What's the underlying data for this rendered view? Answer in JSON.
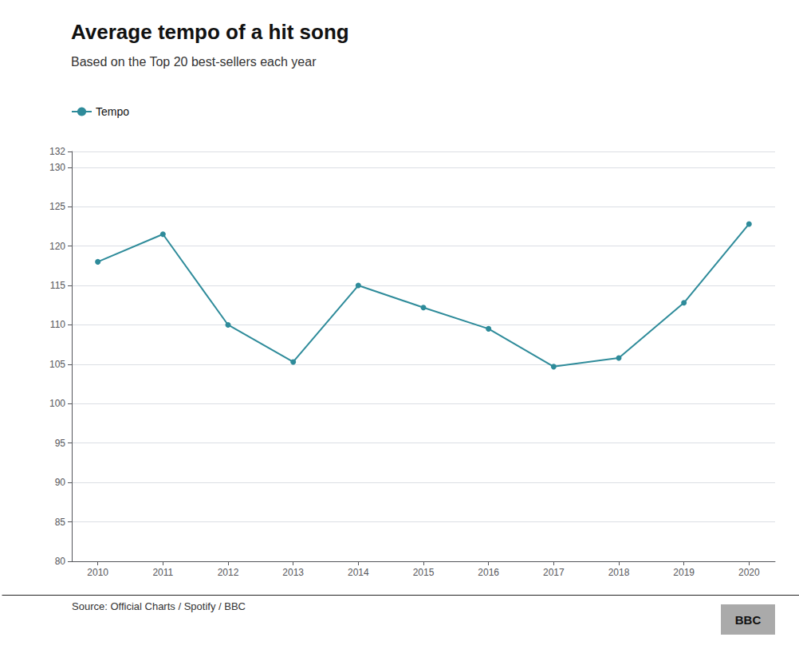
{
  "chart_data": {
    "type": "line",
    "title": "Average tempo of a hit song",
    "subtitle": "Based on the Top 20 best-sellers each year",
    "annotations": [
      "Source: Official Charts / Spotify / BBC",
      "BBC"
    ],
    "x": [
      2010,
      2011,
      2012,
      2013,
      2014,
      2015,
      2016,
      2017,
      2018,
      2019,
      2020
    ],
    "series": [
      {
        "name": "Tempo",
        "color": "#2e8b9a",
        "marker": "circle",
        "values": [
          118.0,
          121.5,
          110.0,
          105.3,
          115.0,
          112.2,
          109.5,
          104.7,
          105.8,
          112.8,
          122.8
        ]
      }
    ],
    "xlim": [
      2009.6,
      2020.4
    ],
    "xticks": [
      2010,
      2011,
      2012,
      2013,
      2014,
      2015,
      2016,
      2017,
      2018,
      2019,
      2020
    ],
    "ylim": [
      80,
      132
    ],
    "yticks": [
      80,
      85,
      90,
      95,
      100,
      105,
      110,
      115,
      120,
      125,
      130
    ],
    "grid": true,
    "legend": "upper left"
  }
}
